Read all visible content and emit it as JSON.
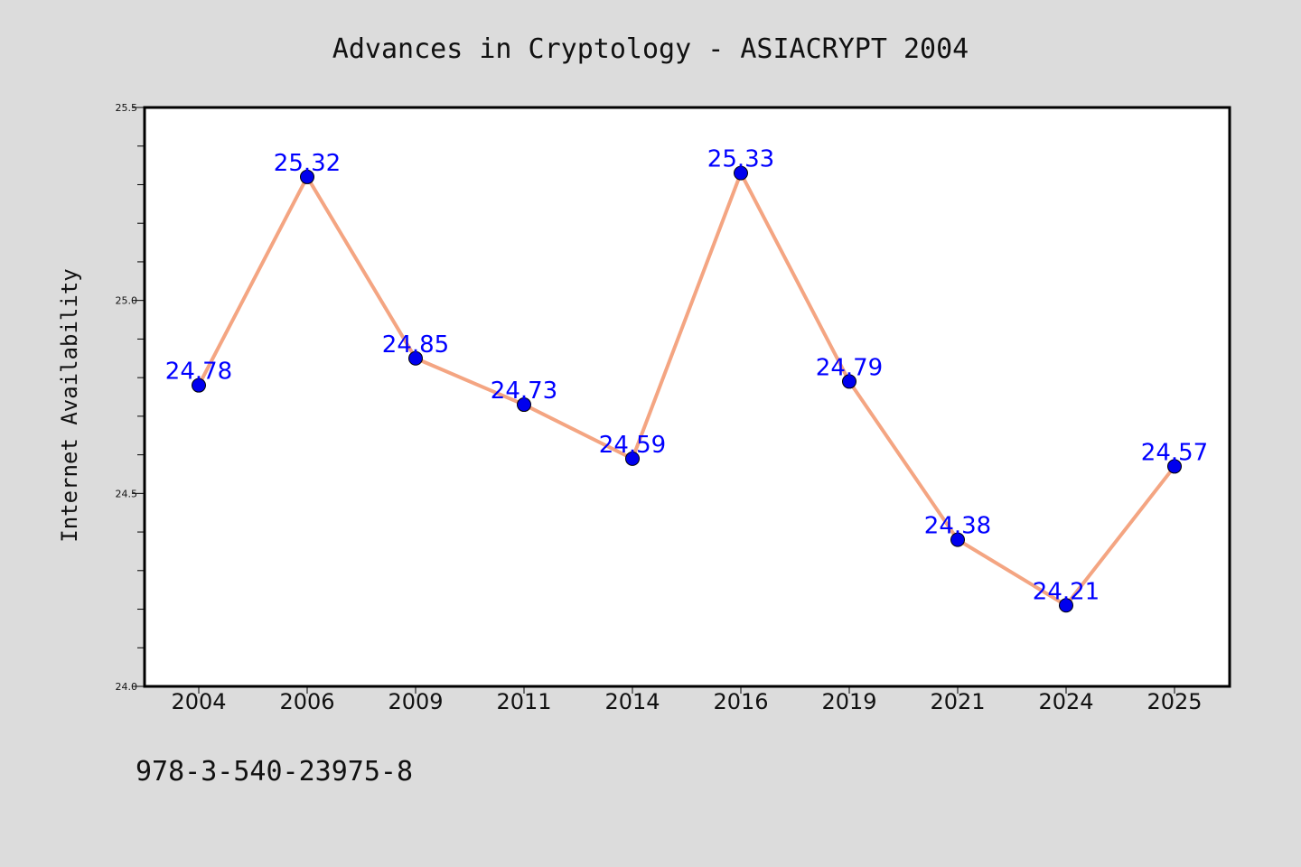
{
  "chart_data": {
    "type": "line",
    "title": "Advances in Cryptology - ASIACRYPT 2004",
    "xlabel": "",
    "ylabel": "Internet Availability",
    "categories": [
      "2004",
      "2006",
      "2009",
      "2011",
      "2014",
      "2016",
      "2019",
      "2021",
      "2024",
      "2025"
    ],
    "series": [
      {
        "values": [
          24.78,
          25.32,
          24.85,
          24.73,
          24.59,
          25.33,
          24.79,
          24.38,
          24.21,
          24.57
        ],
        "labels": [
          "24.78",
          "25.32",
          "24.85",
          "24.73",
          "24.59",
          "25.33",
          "24.79",
          "24.38",
          "24.21",
          "24.57"
        ]
      }
    ],
    "ylim": [
      24.0,
      25.5
    ],
    "y_ticks": [
      "24.0",
      "24.5",
      "25.0",
      "25.5"
    ],
    "grid": false,
    "legend": "none",
    "colors": {
      "line": "#f4a582",
      "marker": "#0000ee",
      "data_label": "#0000ff",
      "background": "#dcdcdc",
      "plot_background": "#ffffff"
    }
  },
  "footer": {
    "code": "978-3-540-23975-8"
  }
}
